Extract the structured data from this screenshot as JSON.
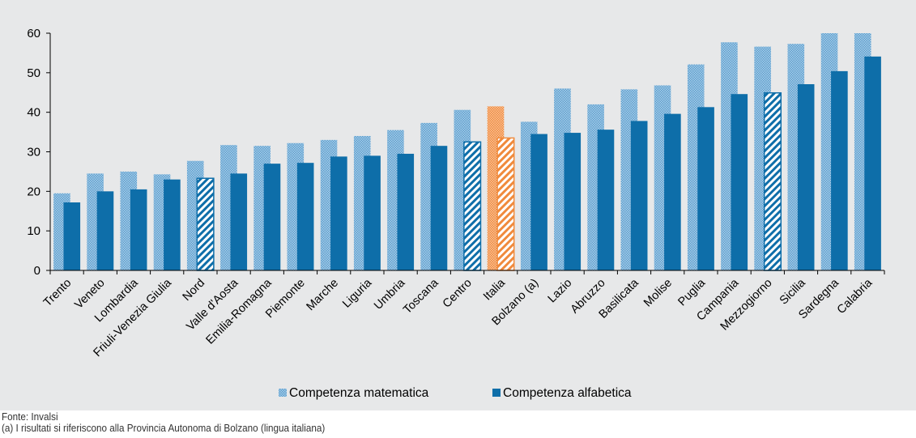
{
  "chart_data": {
    "type": "bar",
    "categories": [
      "Trento",
      "Veneto",
      "Lombardia",
      "Friuli-Venezia Giulia",
      "Nord",
      "Valle d'Aosta",
      "Emilia-Romagna",
      "Piemonte",
      "Marche",
      "Liguria",
      "Umbria",
      "Toscana",
      "Centro",
      "Italia",
      "Bolzano (a)",
      "Lazio",
      "Abruzzo",
      "Basilicata",
      "Molise",
      "Puglia",
      "Campania",
      "Mezzogiorno",
      "Sicilia",
      "Sardegna",
      "Calabria"
    ],
    "series": [
      {
        "name": "Competenza matematica",
        "values": [
          19.5,
          24.5,
          25,
          24.3,
          27.7,
          31.7,
          31.5,
          32.2,
          33,
          34,
          35.5,
          37.3,
          40.6,
          41.5,
          37.6,
          46,
          42,
          45.8,
          46.8,
          52.1,
          57.7,
          56.6,
          57.3,
          60,
          60
        ]
      },
      {
        "name": "Competenza alfabetica",
        "values": [
          17.2,
          20,
          20.5,
          23,
          23.3,
          24.5,
          27,
          27.2,
          28.8,
          29,
          29.5,
          31.5,
          32.5,
          33.5,
          34.5,
          34.8,
          35.6,
          37.8,
          39.6,
          41.3,
          44.6,
          44.9,
          47.1,
          50.4,
          54.1
        ]
      }
    ],
    "highlight": {
      "Nord": "aggregate",
      "Centro": "aggregate",
      "Mezzogiorno": "aggregate",
      "Italia": "national"
    },
    "ylim": [
      0,
      60
    ],
    "yticks": [
      "0",
      "10",
      "20",
      "30",
      "40",
      "50",
      "60"
    ],
    "grid": false,
    "legend": "bottom",
    "colors": {
      "math": "#7fb4d9",
      "alpha": "#0e6ea9",
      "italia": "#f08a3c",
      "background": "#e7e8e9"
    }
  },
  "legend": {
    "math_label": "Competenza matematica",
    "alpha_label": "Competenza alfabetica"
  },
  "notes": {
    "source": "Fonte: Invalsi",
    "footnote": "(a) I risultati si riferiscono alla Provincia Autonoma di Bolzano (lingua italiana)"
  }
}
